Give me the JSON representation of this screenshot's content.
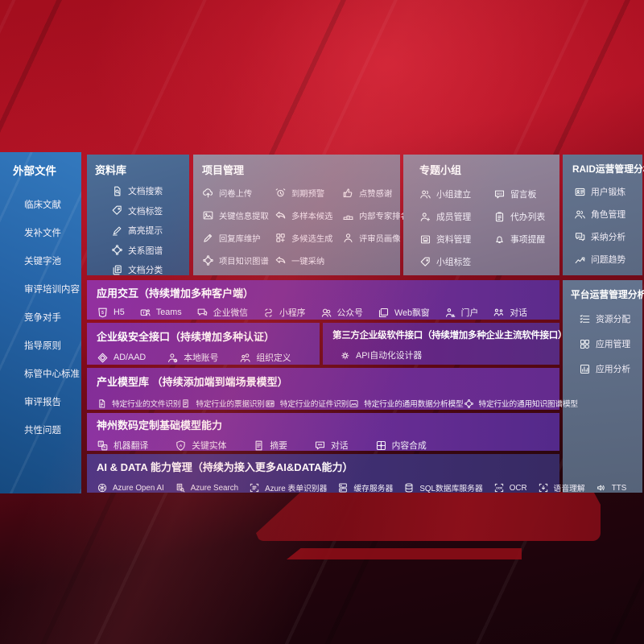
{
  "left_panel": {
    "title": "外部文件",
    "items": [
      "临床文献",
      "发补文件",
      "关键字池",
      "审评培训内容",
      "竞争对手",
      "指导原则",
      "标管中心标准",
      "审评报告",
      "共性问题"
    ]
  },
  "repo_panel": {
    "title": "资料库",
    "items": [
      {
        "icon": "doc-search-icon",
        "label": "文档搜索"
      },
      {
        "icon": "tag-icon",
        "label": "文档标签"
      },
      {
        "icon": "highlighter-icon",
        "label": "高亮提示"
      },
      {
        "icon": "knowledge-graph-icon",
        "label": "关系图谱"
      },
      {
        "icon": "doc-copy-icon",
        "label": "文档分类"
      }
    ]
  },
  "project_panel": {
    "title": "项目管理",
    "items": [
      {
        "icon": "cloud-upload-icon",
        "label": "问卷上传"
      },
      {
        "icon": "alarm-icon",
        "label": "到期预警"
      },
      {
        "icon": "thumbs-up-icon",
        "label": "点赞感谢"
      },
      {
        "icon": "image-extract-icon",
        "label": "关键信息提取"
      },
      {
        "icon": "reply-arrow-icon",
        "label": "多样本候选"
      },
      {
        "icon": "ranking-icon",
        "label": "内部专家排名"
      },
      {
        "icon": "pen-icon",
        "label": "回复库维护"
      },
      {
        "icon": "grid-gen-icon",
        "label": "多候选生成"
      },
      {
        "icon": "person-icon",
        "label": "评审员画像"
      },
      {
        "icon": "knowledge-graph-icon",
        "label": "项目知识图谱"
      },
      {
        "icon": "adopt-arrow-icon",
        "label": "一键采纳"
      }
    ]
  },
  "groups_panel": {
    "title": "专题小组",
    "items": [
      {
        "icon": "people-icon",
        "label": "小组建立"
      },
      {
        "icon": "bbs-board-icon",
        "label": "留言板"
      },
      {
        "icon": "person-add-icon",
        "label": "成员管理"
      },
      {
        "icon": "todo-clipboard-icon",
        "label": "代办列表"
      },
      {
        "icon": "archive-icon",
        "label": "资料管理"
      },
      {
        "icon": "bell-icon",
        "label": "事项提醒"
      },
      {
        "icon": "tag-icon",
        "label": "小组标签"
      }
    ]
  },
  "raid_panel": {
    "title": "RAID运营管理分析",
    "items": [
      {
        "icon": "id-card-icon",
        "label": "用户锻炼"
      },
      {
        "icon": "people-icon",
        "label": "角色管理"
      },
      {
        "icon": "chat-analysis-icon",
        "label": "采纳分析"
      },
      {
        "icon": "trend-icon",
        "label": "问题趋势"
      }
    ]
  },
  "platform_panel": {
    "title": "平台运营管理分析",
    "items": [
      {
        "icon": "checklist-icon",
        "label": "资源分配"
      },
      {
        "icon": "app-grid-icon",
        "label": "应用管理"
      },
      {
        "icon": "app-chart-icon",
        "label": "应用分析"
      }
    ]
  },
  "interaction_row": {
    "title": "应用交互（持续增加多种客户端）",
    "items": [
      {
        "icon": "h5-icon",
        "label": "H5"
      },
      {
        "icon": "teams-icon",
        "label": "Teams"
      },
      {
        "icon": "wechat-work-icon",
        "label": "企业微信"
      },
      {
        "icon": "miniprogram-icon",
        "label": "小程序"
      },
      {
        "icon": "official-account-icon",
        "label": "公众号"
      },
      {
        "icon": "web-window-icon",
        "label": "Web飘窗"
      },
      {
        "icon": "portal-icon",
        "label": "门户"
      },
      {
        "icon": "dialog-icon",
        "label": "对话"
      }
    ]
  },
  "security_row": {
    "title": "企业级安全接口（持续增加多种认证）",
    "items": [
      {
        "icon": "ad-diamond-icon",
        "label": "AD/AAD"
      },
      {
        "icon": "local-account-icon",
        "label": "本地账号"
      },
      {
        "icon": "org-icon",
        "label": "组织定义"
      }
    ]
  },
  "thirdparty_row": {
    "title": "第三方企业级软件接口（持续增加多种企业主流软件接口）",
    "items": [
      {
        "icon": "api-gear-icon",
        "label": "API自动化设计器"
      }
    ]
  },
  "industry_row": {
    "title": "产业模型库 （持续添加端到端场景模型）",
    "items": [
      {
        "icon": "doc-icon",
        "label": "特定行业的文件识别"
      },
      {
        "icon": "receipt-icon",
        "label": "特定行业的票据识别"
      },
      {
        "icon": "id-card-icon",
        "label": "特定行业的证件识别"
      },
      {
        "icon": "data-model-icon",
        "label": "特定行业的通用数据分析模型"
      },
      {
        "icon": "knowledge-graph-icon",
        "label": "特定行业的通用知识图谱模型"
      }
    ]
  },
  "foundation_row": {
    "title": "神州数码定制基础模型能力",
    "items": [
      {
        "icon": "translate-icon",
        "label": "机器翻译"
      },
      {
        "icon": "entity-shield-icon",
        "label": "关键实体"
      },
      {
        "icon": "summary-doc-icon",
        "label": "摘要"
      },
      {
        "icon": "chat-icon",
        "label": "对话"
      },
      {
        "icon": "compose-icon",
        "label": "内容合成"
      }
    ]
  },
  "aidata_row": {
    "title": "AI & DATA 能力管理（持续为接入更多AI&DATA能力）",
    "items": [
      {
        "icon": "openai-icon",
        "label": "Azure Open AI"
      },
      {
        "icon": "azure-search-icon",
        "label": "Azure Search"
      },
      {
        "icon": "form-recognizer-icon",
        "label": "Azure 表单识别器"
      },
      {
        "icon": "cache-server-icon",
        "label": "缓存服务器"
      },
      {
        "icon": "sql-db-icon",
        "label": "SQL数据库服务器"
      },
      {
        "icon": "ocr-icon",
        "label": "OCR"
      },
      {
        "icon": "speech-icon",
        "label": "语音理解"
      },
      {
        "icon": "tts-icon",
        "label": "TTS"
      }
    ]
  },
  "colors": {
    "bg_red": "#a30e1e",
    "bg_red_dark": "#17030a",
    "left_blue_top": "#3379be",
    "left_blue_bottom": "#164a80",
    "panel_gray": "#95889b",
    "slate_panel": "#64748f",
    "purple_bright": "#93309f",
    "purple_deep": "#5b2b8c",
    "indigo": "#4a3585",
    "indigo_deep": "#372a63"
  }
}
